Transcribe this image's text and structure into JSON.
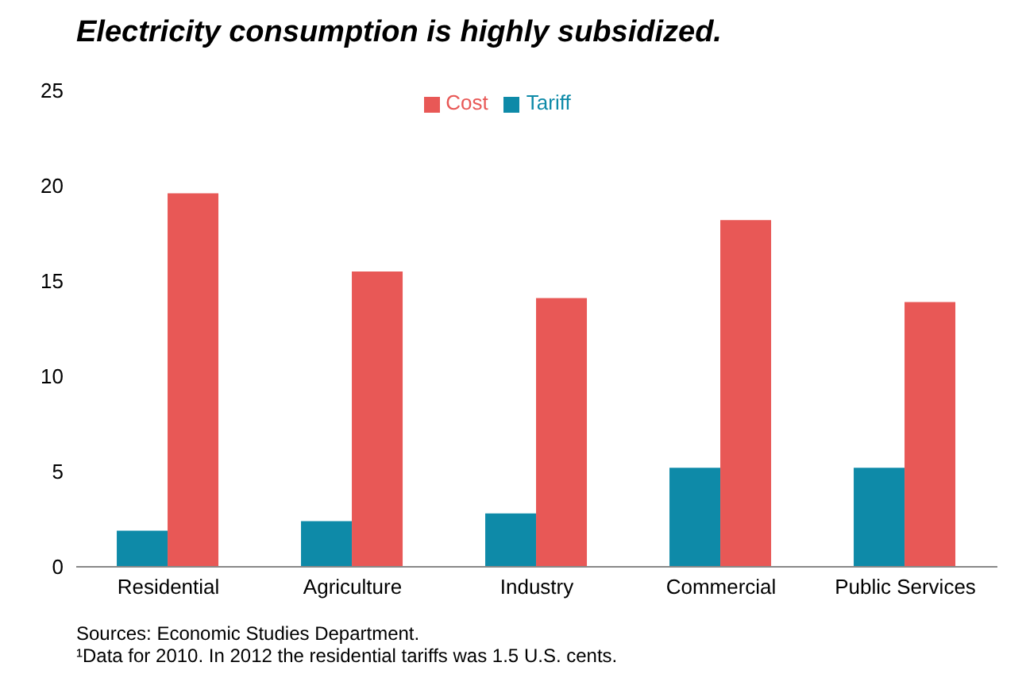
{
  "chart_data": {
    "type": "bar",
    "title": "Electricity consumption is highly subsidized.",
    "categories": [
      "Residential",
      "Agriculture",
      "Industry",
      "Commercial",
      "Public Services"
    ],
    "series": [
      {
        "name": "Tariff",
        "color": "#0e8aa8",
        "values": [
          1.9,
          2.4,
          2.8,
          5.2,
          5.2
        ]
      },
      {
        "name": "Cost",
        "color": "#e85856",
        "values": [
          19.6,
          15.5,
          14.1,
          18.2,
          13.9
        ]
      }
    ],
    "ylim": [
      0,
      25
    ],
    "yticks": [
      0,
      5,
      10,
      15,
      20,
      25
    ],
    "grid": false,
    "legend": "top",
    "annotations": [
      "Sources: Economic Studies Department.",
      "¹Data for 2010. In 2012 the residential tariffs  was 1.5 U.S. cents."
    ]
  }
}
